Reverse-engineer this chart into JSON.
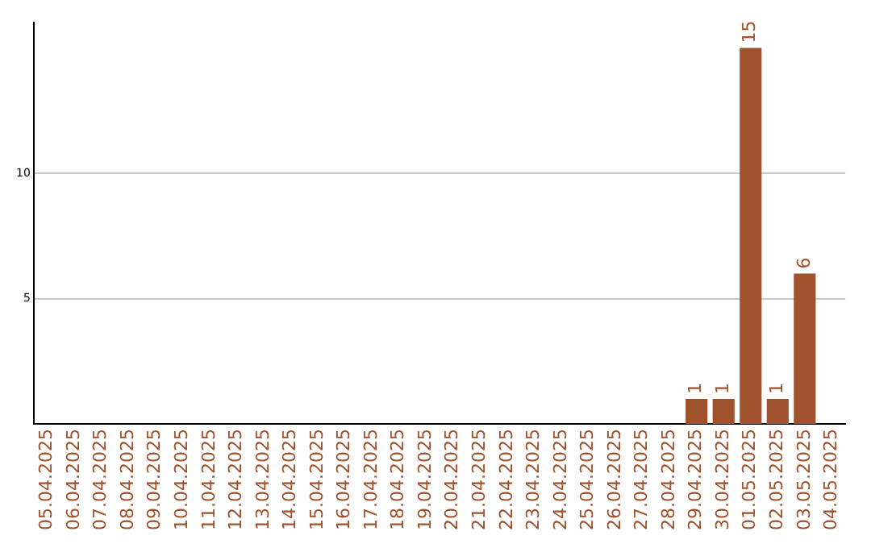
{
  "chart_data": {
    "type": "bar",
    "categories": [
      "05.04.2025",
      "06.04.2025",
      "07.04.2025",
      "08.04.2025",
      "09.04.2025",
      "10.04.2025",
      "11.04.2025",
      "12.04.2025",
      "13.04.2025",
      "14.04.2025",
      "15.04.2025",
      "16.04.2025",
      "17.04.2025",
      "18.04.2025",
      "19.04.2025",
      "20.04.2025",
      "21.04.2025",
      "22.04.2025",
      "23.04.2025",
      "24.04.2025",
      "25.04.2025",
      "26.04.2025",
      "27.04.2025",
      "28.04.2025",
      "29.04.2025",
      "30.04.2025",
      "01.05.2025",
      "02.05.2025",
      "03.05.2025",
      "04.05.2025"
    ],
    "values": [
      0,
      0,
      0,
      0,
      0,
      0,
      0,
      0,
      0,
      0,
      0,
      0,
      0,
      0,
      0,
      0,
      0,
      0,
      0,
      0,
      0,
      0,
      0,
      0,
      1,
      1,
      15,
      1,
      6,
      0
    ],
    "value_labels": [
      null,
      null,
      null,
      null,
      null,
      null,
      null,
      null,
      null,
      null,
      null,
      null,
      null,
      null,
      null,
      null,
      null,
      null,
      null,
      null,
      null,
      null,
      null,
      null,
      "1",
      "1",
      "15",
      "1",
      "6",
      null
    ],
    "color": "#a0522d",
    "ylim": [
      0,
      16
    ],
    "yticks": [
      5,
      10
    ],
    "grid": "y",
    "legend": false
  }
}
